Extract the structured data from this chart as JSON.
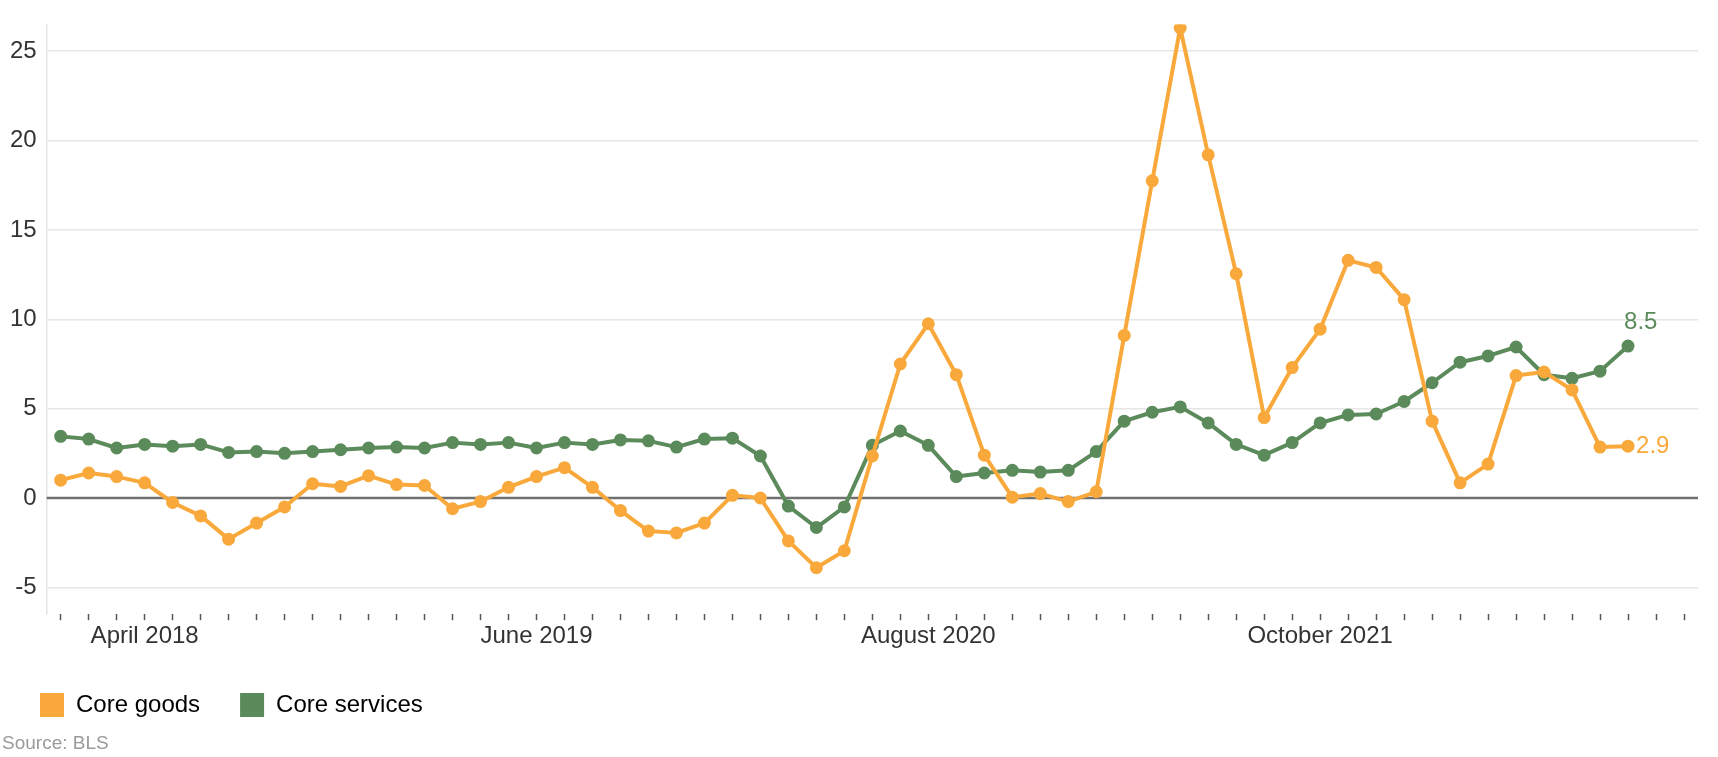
{
  "chart_data": {
    "type": "line",
    "categories": [
      null,
      null,
      null,
      "April 2018",
      null,
      null,
      null,
      null,
      null,
      null,
      null,
      null,
      null,
      null,
      null,
      null,
      null,
      "June 2019",
      null,
      null,
      null,
      null,
      null,
      null,
      null,
      null,
      null,
      null,
      null,
      null,
      null,
      "August 2020",
      null,
      null,
      null,
      null,
      null,
      null,
      null,
      null,
      null,
      null,
      null,
      null,
      null,
      "October 2021",
      null,
      null,
      null,
      null,
      null,
      null,
      null,
      null,
      null,
      null,
      null,
      null,
      null
    ],
    "series": [
      {
        "name": "Core goods",
        "color": "#f9a93b",
        "values": [
          1.0,
          1.4,
          1.2,
          0.85,
          -0.25,
          -1.0,
          -2.3,
          -1.4,
          -0.5,
          0.8,
          0.65,
          1.25,
          0.75,
          0.7,
          -0.6,
          -0.2,
          0.6,
          1.2,
          1.7,
          0.6,
          -0.7,
          -1.85,
          -1.95,
          -1.4,
          0.15,
          0.0,
          -2.4,
          -3.9,
          -2.95,
          2.35,
          7.5,
          9.75,
          6.9,
          2.4,
          0.05,
          0.25,
          -0.2,
          0.35,
          9.1,
          17.75,
          26.3,
          19.2,
          12.55,
          4.5,
          7.3,
          9.45,
          13.3,
          12.9,
          11.1,
          4.3,
          0.85,
          1.9,
          6.85,
          7.05,
          6.05,
          2.85,
          2.9,
          null,
          null
        ],
        "value_labels": [
          null,
          null,
          null,
          null,
          null,
          null,
          null,
          null,
          null,
          null,
          null,
          null,
          null,
          null,
          null,
          null,
          null,
          null,
          null,
          null,
          null,
          null,
          null,
          null,
          null,
          null,
          null,
          null,
          null,
          null,
          null,
          null,
          null,
          null,
          null,
          null,
          null,
          null,
          null,
          null,
          null,
          null,
          null,
          null,
          null,
          null,
          null,
          null,
          null,
          null,
          null,
          null,
          null,
          null,
          null,
          null,
          "2.9",
          null,
          null
        ]
      },
      {
        "name": "Core services",
        "color": "#5b8a5b",
        "values": [
          3.45,
          3.3,
          2.8,
          3.0,
          2.9,
          3.0,
          2.55,
          2.6,
          2.5,
          2.6,
          2.7,
          2.8,
          2.85,
          2.8,
          3.1,
          3.0,
          3.1,
          2.8,
          3.1,
          3.0,
          3.25,
          3.2,
          2.85,
          3.3,
          3.35,
          2.35,
          -0.45,
          -1.65,
          -0.5,
          2.95,
          3.75,
          2.95,
          1.2,
          1.4,
          1.55,
          1.45,
          1.55,
          2.6,
          4.3,
          4.8,
          5.1,
          4.2,
          3.0,
          2.4,
          3.1,
          4.2,
          4.65,
          4.7,
          5.4,
          6.45,
          7.6,
          7.95,
          8.45,
          6.9,
          6.7,
          7.1,
          8.5,
          null,
          null
        ],
        "value_labels": [
          null,
          null,
          null,
          null,
          null,
          null,
          null,
          null,
          null,
          null,
          null,
          null,
          null,
          null,
          null,
          null,
          null,
          null,
          null,
          null,
          null,
          null,
          null,
          null,
          null,
          null,
          null,
          null,
          null,
          null,
          null,
          null,
          null,
          null,
          null,
          null,
          null,
          null,
          null,
          null,
          null,
          null,
          null,
          null,
          null,
          null,
          null,
          null,
          null,
          null,
          null,
          null,
          null,
          null,
          null,
          null,
          "8.5",
          null,
          null
        ]
      }
    ],
    "ylim": [
      -6.5,
      26.5
    ],
    "yticks": [
      -5,
      0,
      5,
      10,
      15,
      20,
      25
    ],
    "grid": "y",
    "ref_lines": [
      {
        "axis": "y",
        "value": 0,
        "color": "#707070"
      }
    ],
    "legend": "bottom left",
    "marker": "circle",
    "line_style": "solid",
    "annotations": [
      "Source: BLS"
    ]
  }
}
